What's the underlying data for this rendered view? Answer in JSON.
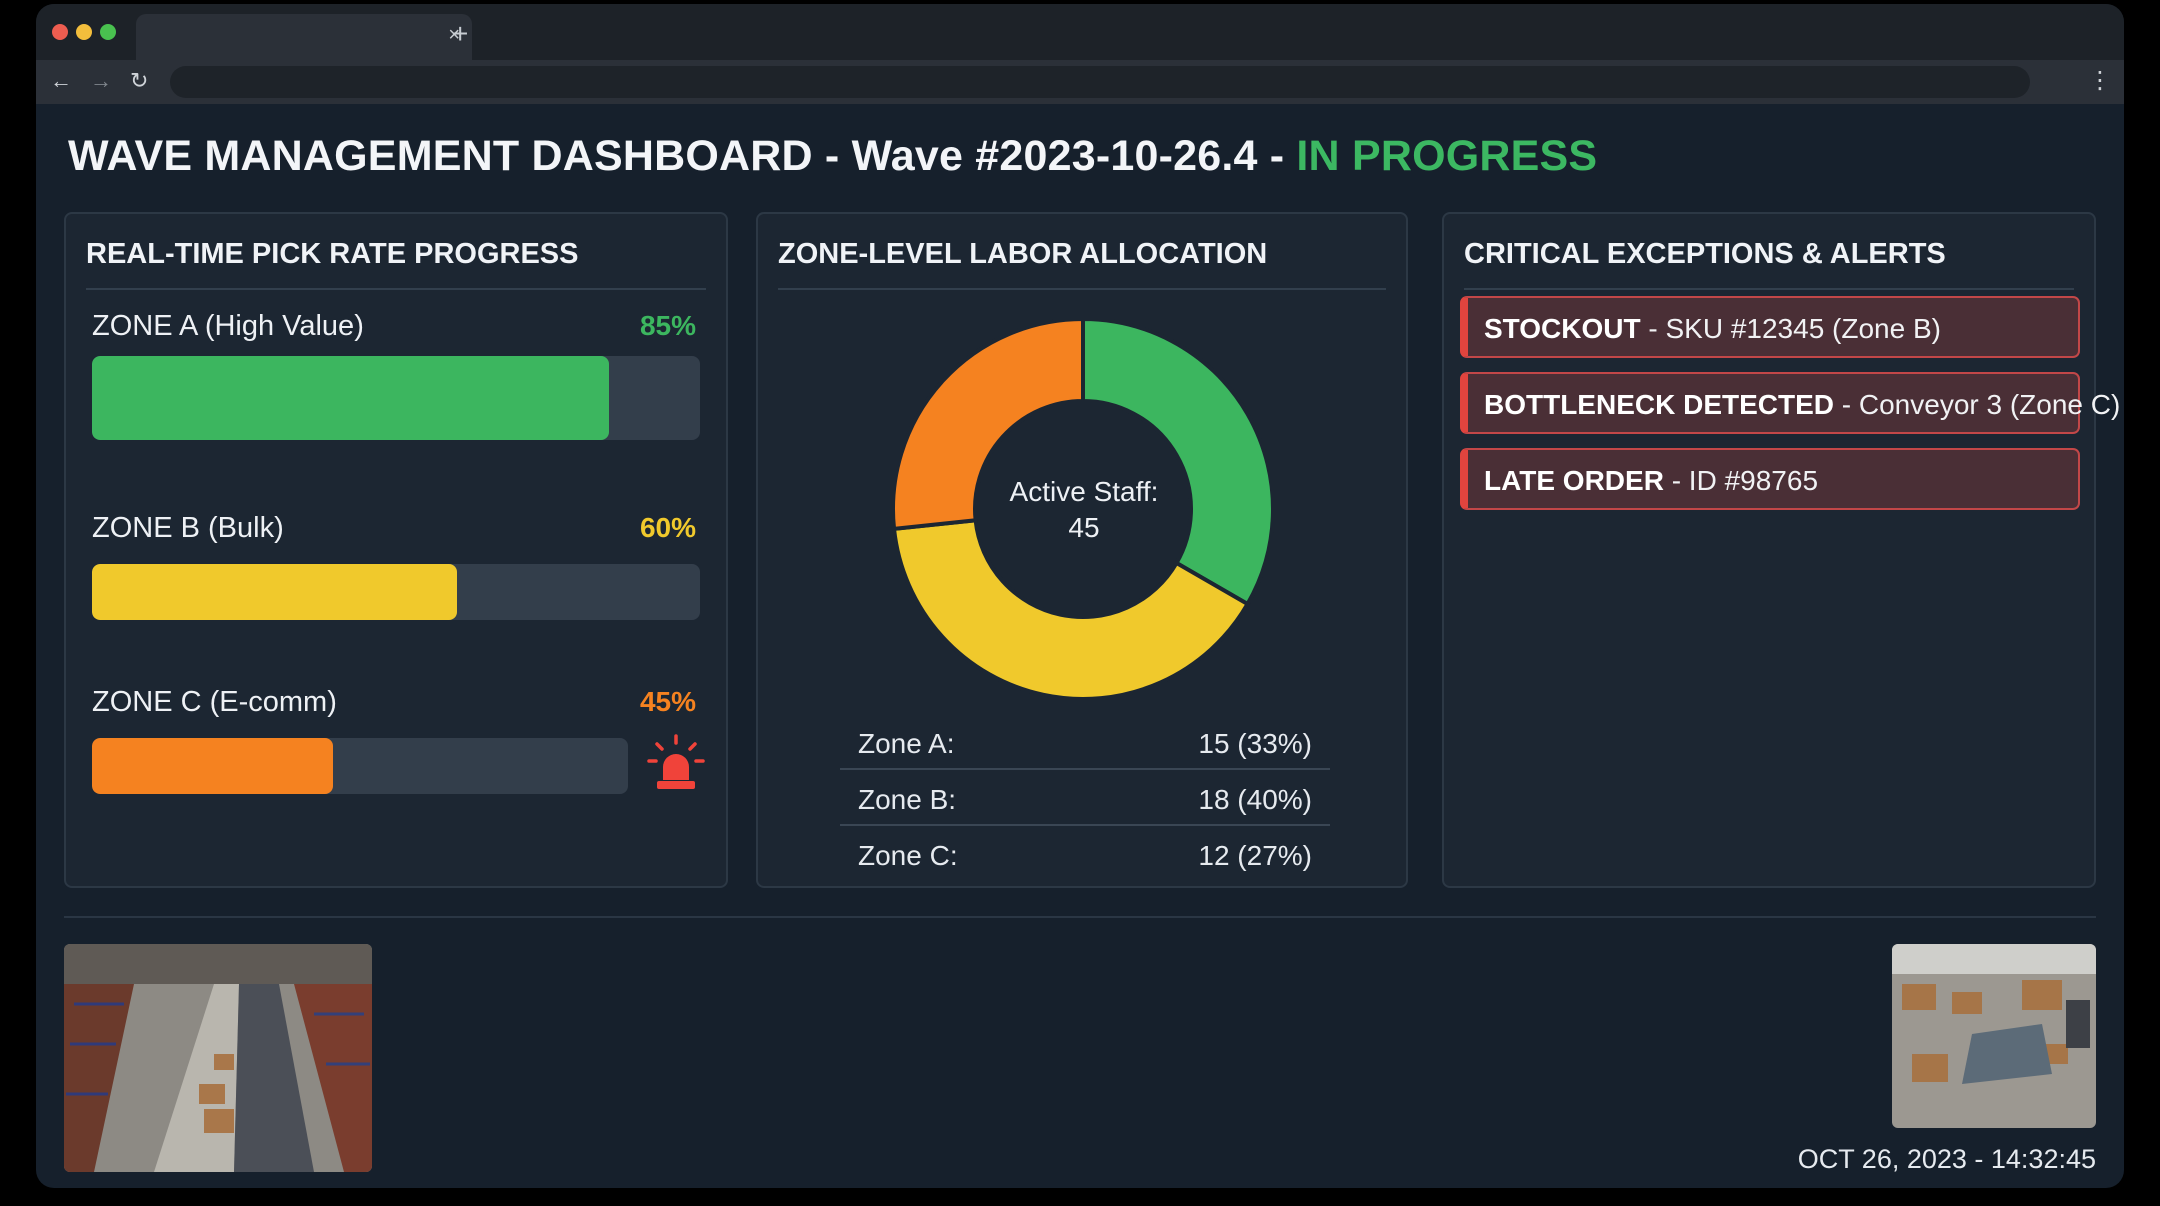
{
  "browser": {
    "tab_close": "×",
    "new_tab": "+",
    "back": "←",
    "forward": "→",
    "reload": "↻",
    "menu": "⋮"
  },
  "dashboard": {
    "title_prefix": "WAVE MANAGEMENT DASHBOARD - Wave #2023-10-26.4 - ",
    "status": "IN PROGRESS",
    "status_color": "#3cb862"
  },
  "pick_rate": {
    "title": "REAL-TIME PICK RATE PROGRESS",
    "zones": [
      {
        "label": "ZONE A (High Value)",
        "percent_text": "85%",
        "progress": 0.85,
        "color": "#3cb65f"
      },
      {
        "label": "ZONE B (Bulk)",
        "percent_text": "60%",
        "progress": 0.6,
        "color": "#f0c92c"
      },
      {
        "label": "ZONE C (E-comm)",
        "percent_text": "45%",
        "progress": 0.45,
        "color": "#f58220"
      }
    ],
    "alert_icon": "alarm-siren-icon"
  },
  "labor": {
    "title": "ZONE-LEVEL LABOR ALLOCATION",
    "center_label": "Active Staff:",
    "center_value": "45",
    "rows": [
      {
        "label": "Zone A:",
        "value": "15 (33%)"
      },
      {
        "label": "Zone B:",
        "value": "18 (40%)"
      },
      {
        "label": "Zone C:",
        "value": "12 (27%)"
      }
    ]
  },
  "chart_data": {
    "type": "pie",
    "title": "",
    "categories": [
      "Zone A",
      "Zone B",
      "Zone C"
    ],
    "values": [
      15,
      18,
      12
    ],
    "colors": [
      "#3cb65f",
      "#f0c92c",
      "#f58220"
    ],
    "donut": true
  },
  "alerts": {
    "title": "CRITICAL EXCEPTIONS & ALERTS",
    "items": [
      {
        "type": "STOCKOUT",
        "detail": " - SKU #12345 (Zone B)"
      },
      {
        "type": "BOTTLENECK DETECTED",
        "detail": " - Conveyor 3 (Zone C)"
      },
      {
        "type": "LATE ORDER",
        "detail": " - ID #98765"
      }
    ]
  },
  "footer": {
    "timestamp": "OCT 26, 2023 - 14:32:45"
  }
}
